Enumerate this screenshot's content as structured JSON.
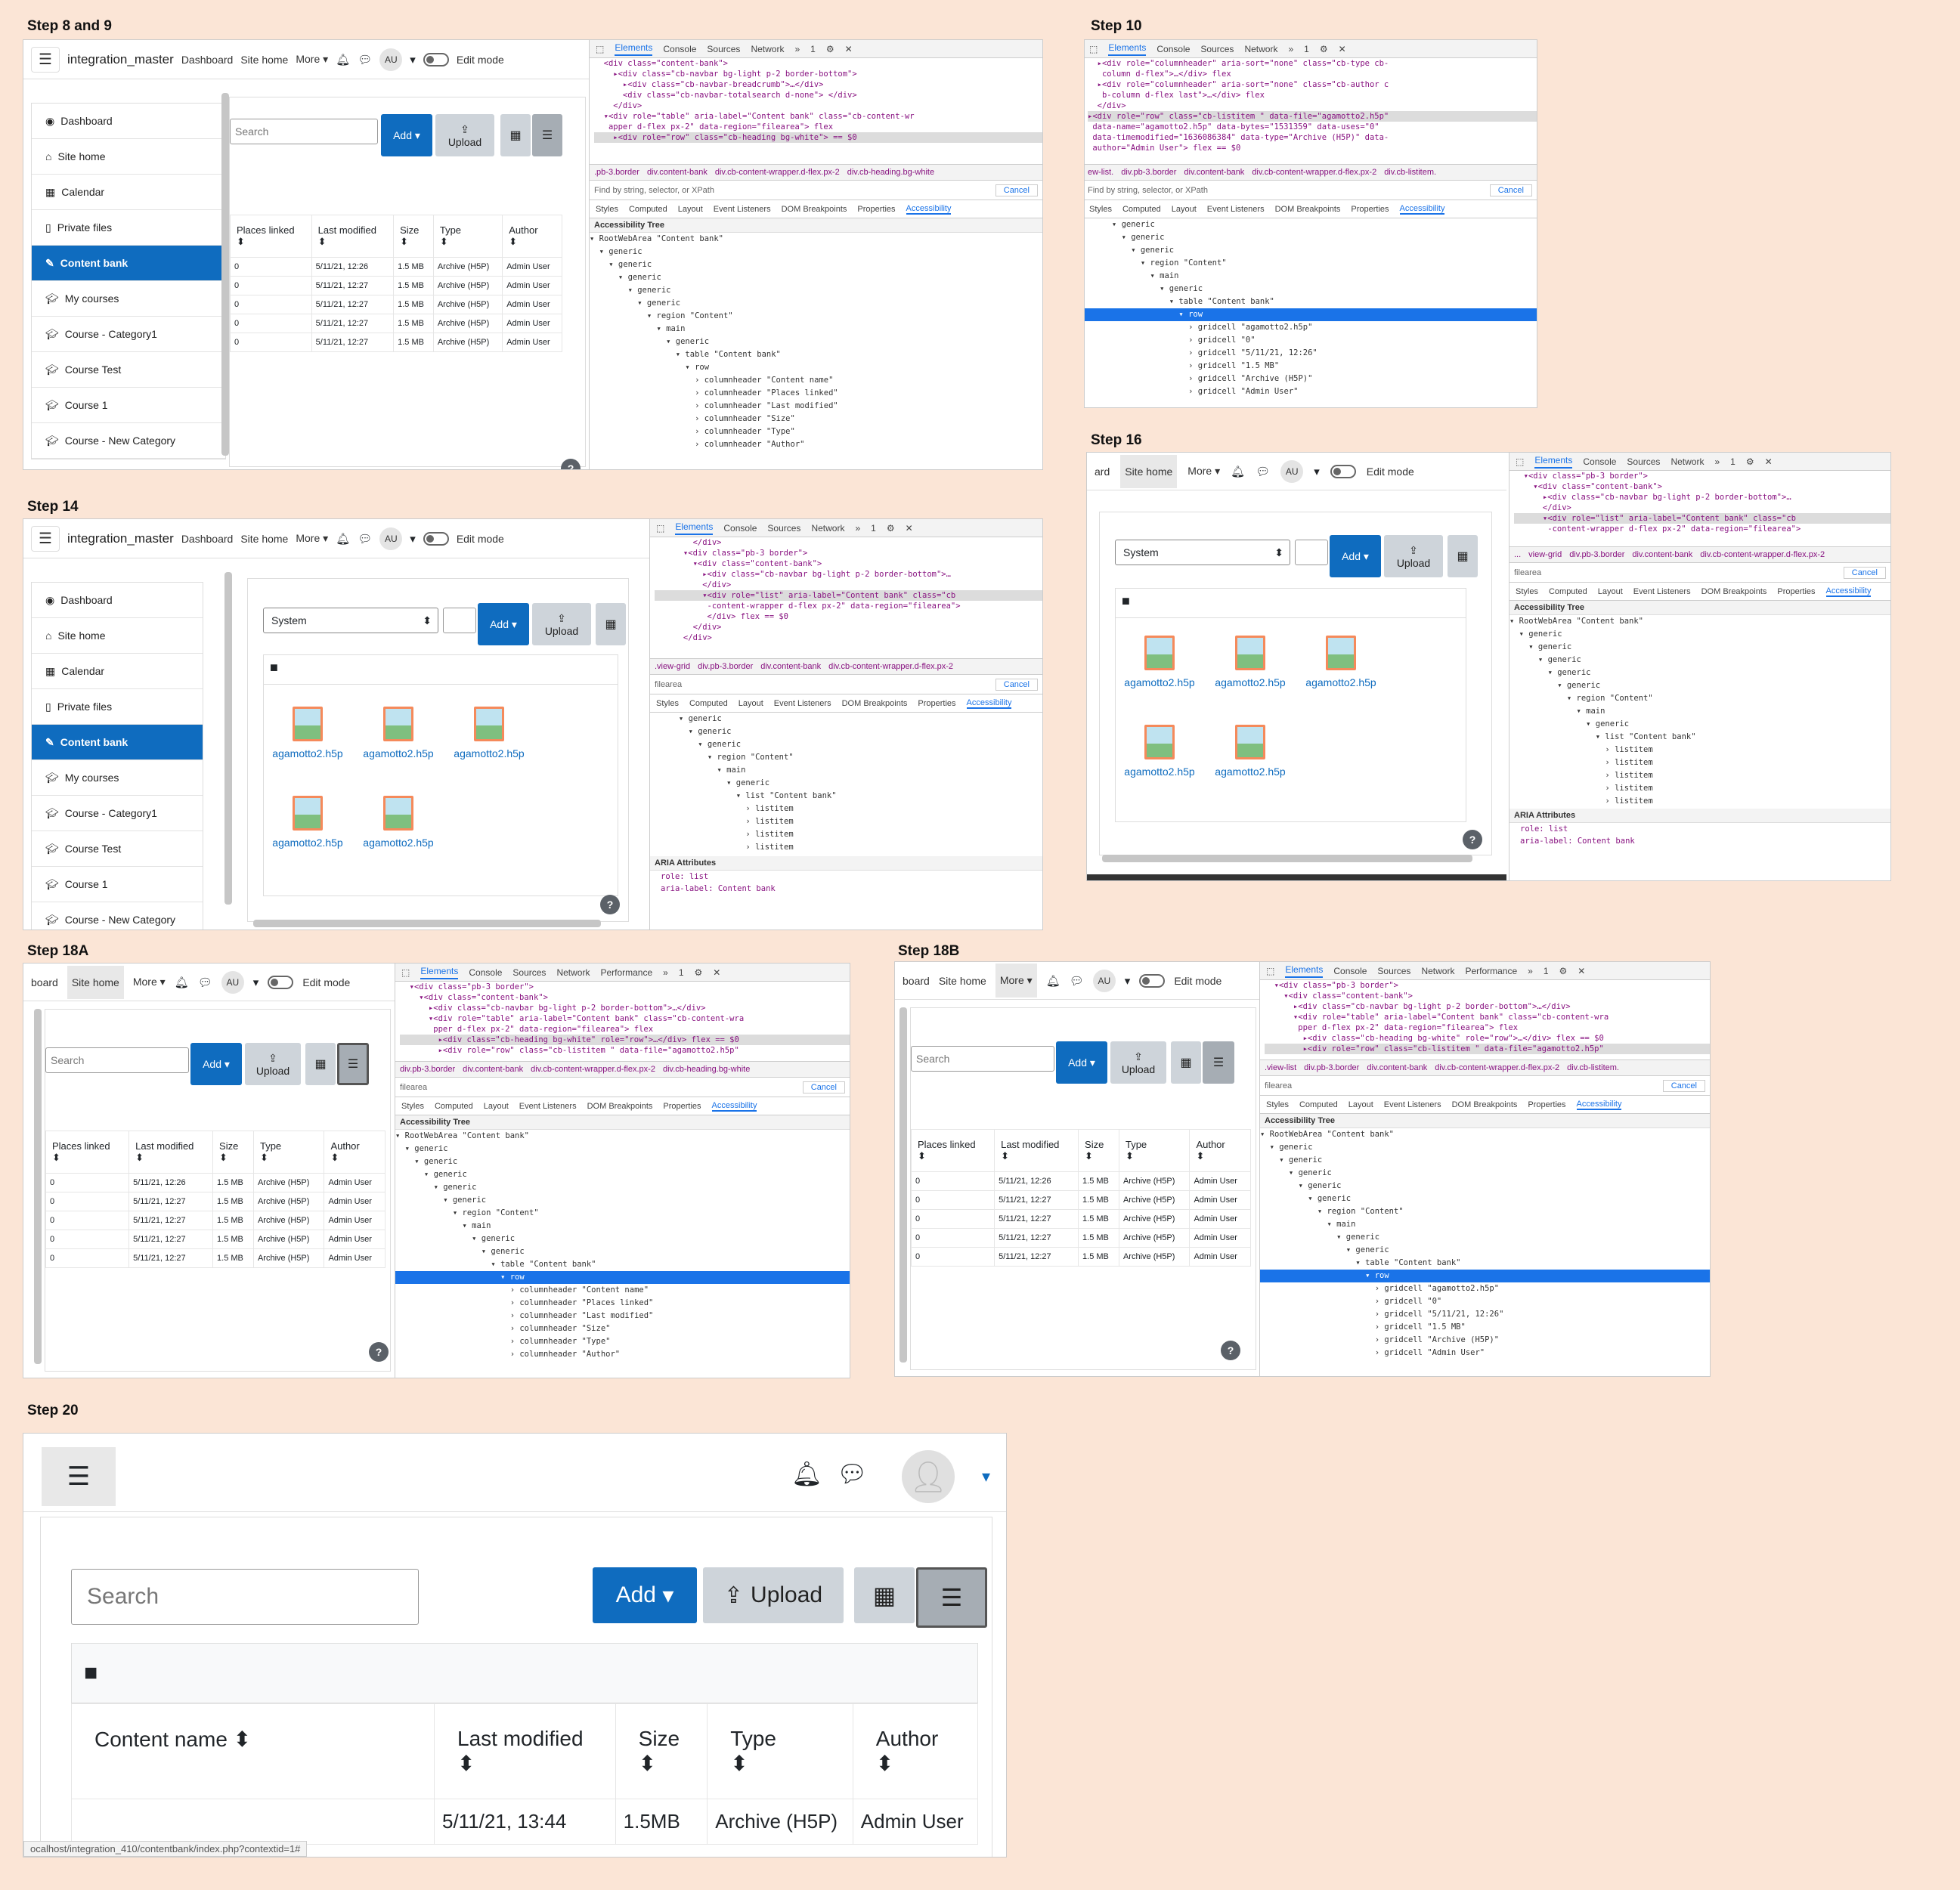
{
  "steps": {
    "s8": "Step 8 and 9",
    "s10": "Step 10",
    "s14": "Step 14",
    "s16": "Step 16",
    "s18a": "Step 18A",
    "s18b": "Step 18B",
    "s20": "Step 20"
  },
  "navbar": {
    "brand": "integration_master",
    "dashboard": "Dashboard",
    "site_home": "Site home",
    "more": "More",
    "avatar": "AU",
    "edit_mode": "Edit mode",
    "board_trunc": "board",
    "ard_trunc": "ard"
  },
  "sidebar": {
    "items": [
      "Dashboard",
      "Site home",
      "Calendar",
      "Private files",
      "Content bank",
      "My courses",
      "Course - Category1",
      "Course Test",
      "Course 1",
      "Course - New Category"
    ]
  },
  "bank": {
    "search_placeholder": "Search",
    "add": "Add",
    "upload": "Upload",
    "system": "System",
    "headers": [
      "Places linked",
      "Last modified",
      "Size",
      "Type",
      "Author"
    ],
    "rows": [
      [
        "0",
        "5/11/21, 12:26",
        "1.5 MB",
        "Archive (H5P)",
        "Admin User"
      ],
      [
        "0",
        "5/11/21, 12:27",
        "1.5 MB",
        "Archive (H5P)",
        "Admin User"
      ],
      [
        "0",
        "5/11/21, 12:27",
        "1.5 MB",
        "Archive (H5P)",
        "Admin User"
      ],
      [
        "0",
        "5/11/21, 12:27",
        "1.5 MB",
        "Archive (H5P)",
        "Admin User"
      ],
      [
        "0",
        "5/11/21, 12:27",
        "1.5 MB",
        "Archive (H5P)",
        "Admin User"
      ]
    ],
    "file_name": "agamotto2.h5p",
    "help": "?"
  },
  "devtools": {
    "tabs": [
      "Elements",
      "Console",
      "Sources",
      "Network"
    ],
    "tabs_perf": [
      "Elements",
      "Console",
      "Sources",
      "Network",
      "Performance"
    ],
    "issues": "1",
    "find_placeholder": "Find by string, selector, or XPath",
    "find_filearea": "filearea",
    "cancel": "Cancel",
    "subtabs": [
      "Styles",
      "Computed",
      "Layout",
      "Event Listeners",
      "DOM Breakpoints",
      "Properties",
      "Accessibility"
    ],
    "acc_tree": "Accessibility Tree",
    "aria_attrs": "ARIA Attributes",
    "aria_role": "role: list",
    "aria_label": "aria-label: Content bank",
    "code_s8": [
      "  <div class=\"content-bank\">",
      "    ▸<div class=\"cb-navbar bg-light p-2 border-bottom\">",
      "      ▸<div class=\"cb-navbar-breadcrumb\">…</div>",
      "      <div class=\"cb-navbar-totalsearch d-none\"> </div>",
      "    </div>",
      "  ▾<div role=\"table\" aria-label=\"Content bank\" class=\"cb-content-wr",
      "   apper d-flex px-2\" data-region=\"filearea\"> flex",
      "    ▸<div role=\"row\" class=\"cb-heading bg-white\"> == $0"
    ],
    "crumbs_s8": [
      ".pb-3.border",
      "div.content-bank",
      "div.cb-content-wrapper.d-flex.px-2",
      "div.cb-heading.bg-white"
    ],
    "tree_s8": [
      "▾ RootWebArea \"Content bank\"",
      "  ▾ generic",
      "    ▾ generic",
      "      ▾ generic",
      "        ▾ generic",
      "          ▾ generic",
      "            ▾ region \"Content\"",
      "              ▾ main",
      "                ▾ generic",
      "                  ▾ table \"Content bank\"",
      "                    ▾ row",
      "                      › columnheader \"Content name\"",
      "                      › columnheader \"Places linked\"",
      "                      › columnheader \"Last modified\"",
      "                      › columnheader \"Size\"",
      "                      › columnheader \"Type\"",
      "                      › columnheader \"Author\""
    ],
    "code_s10": [
      "  ▸<div role=\"columnheader\" aria-sort=\"none\" class=\"cb-type cb-",
      "   column d-flex\">…</div> flex",
      "  ▸<div role=\"columnheader\" aria-sort=\"none\" class=\"cb-author c",
      "   b-column d-flex last\">…</div> flex",
      "  </div>",
      "▸<div role=\"row\" class=\"cb-listitem \" data-file=\"agamotto2.h5p\"",
      " data-name=\"agamotto2.h5p\" data-bytes=\"1531359\" data-uses=\"0\"",
      " data-timemodified=\"1636086384\" data-type=\"Archive (H5P)\" data-",
      " author=\"Admin User\"> flex == $0"
    ],
    "crumbs_s10": [
      "ew-list.",
      "div.pb-3.border",
      "div.content-bank",
      "div.cb-content-wrapper.d-flex.px-2",
      "div.cb-listitem."
    ],
    "tree_s10": [
      "      ▾ generic",
      "        ▾ generic",
      "          ▾ generic",
      "            ▾ region \"Content\"",
      "              ▾ main",
      "                ▾ generic",
      "                  ▾ table \"Content bank\"",
      "                    ▾ row",
      "                      › gridcell \"agamotto2.h5p\"",
      "                      › gridcell \"0\"",
      "                      › gridcell \"5/11/21, 12:26\"",
      "                      › gridcell \"1.5 MB\"",
      "                      › gridcell \"Archive (H5P)\"",
      "                      › gridcell \"Admin User\""
    ],
    "code_s14": [
      "        </div>",
      "      ▾<div class=\"pb-3 border\">",
      "        ▾<div class=\"content-bank\">",
      "          ▸<div class=\"cb-navbar bg-light p-2 border-bottom\">…",
      "          </div>",
      "          ▾<div role=\"list\" aria-label=\"Content bank\" class=\"cb",
      "           -content-wrapper d-flex px-2\" data-region=\"filearea\">",
      "           </div> flex == $0",
      "        </div>",
      "      </div>"
    ],
    "crumbs_s14": [
      ".view-grid",
      "div.pb-3.border",
      "div.content-bank",
      "div.cb-content-wrapper.d-flex.px-2"
    ],
    "tree_s14": [
      "      ▾ generic",
      "        ▾ generic",
      "          ▾ generic",
      "            ▾ region \"Content\"",
      "              ▾ main",
      "                ▾ generic",
      "                  ▾ list \"Content bank\"",
      "                    › listitem",
      "                    › listitem",
      "                    › listitem",
      "                    › listitem",
      "                    › listitem"
    ],
    "code_s16": [
      "  ▾<div class=\"pb-3 border\">",
      "    ▾<div class=\"content-bank\">",
      "      ▸<div class=\"cb-navbar bg-light p-2 border-bottom\">…",
      "      </div>",
      "      ▾<div role=\"list\" aria-label=\"Content bank\" class=\"cb",
      "       -content-wrapper d-flex px-2\" data-region=\"filearea\">"
    ],
    "crumbs_s16": [
      "...",
      "view-grid",
      "div.pb-3.border",
      "div.content-bank",
      "div.cb-content-wrapper.d-flex.px-2"
    ],
    "tree_s16": [
      "▾ RootWebArea \"Content bank\"",
      "  ▾ generic",
      "    ▾ generic",
      "      ▾ generic",
      "        ▾ generic",
      "          ▾ generic",
      "            ▾ region \"Content\"",
      "              ▾ main",
      "                ▾ generic",
      "                  ▾ list \"Content bank\"",
      "                    › listitem",
      "                    › listitem",
      "                    › listitem",
      "                    › listitem",
      "                    › listitem"
    ],
    "code_s18": [
      "  ▾<div class=\"pb-3 border\">",
      "    ▾<div class=\"content-bank\">",
      "      ▸<div class=\"cb-navbar bg-light p-2 border-bottom\">…</div>",
      "      ▾<div role=\"table\" aria-label=\"Content bank\" class=\"cb-content-wra",
      "       pper d-flex px-2\" data-region=\"filearea\"> flex",
      "        ▸<div class=\"cb-heading bg-white\" role=\"row\">…</div> flex == $0",
      "        ▸<div role=\"row\" class=\"cb-listitem \" data-file=\"agamotto2.h5p\""
    ],
    "crumbs_s18a": [
      "div.pb-3.border",
      "div.content-bank",
      "div.cb-content-wrapper.d-flex.px-2",
      "div.cb-heading.bg-white"
    ],
    "crumbs_s18b": [
      ".view-list",
      "div.pb-3.border",
      "div.content-bank",
      "div.cb-content-wrapper.d-flex.px-2",
      "div.cb-listitem."
    ],
    "tree_s18a": [
      "▾ RootWebArea \"Content bank\"",
      "  ▾ generic",
      "    ▾ generic",
      "      ▾ generic",
      "        ▾ generic",
      "          ▾ generic",
      "            ▾ region \"Content\"",
      "              ▾ main",
      "                ▾ generic",
      "                  ▾ generic",
      "                    ▾ table \"Content bank\"",
      "                      ▾ row",
      "                        › columnheader \"Content name\"",
      "                        › columnheader \"Places linked\"",
      "                        › columnheader \"Last modified\"",
      "                        › columnheader \"Size\"",
      "                        › columnheader \"Type\"",
      "                        › columnheader \"Author\""
    ],
    "tree_s18b": [
      "▾ RootWebArea \"Content bank\"",
      "  ▾ generic",
      "    ▾ generic",
      "      ▾ generic",
      "        ▾ generic",
      "          ▾ generic",
      "            ▾ region \"Content\"",
      "              ▾ main",
      "                ▾ generic",
      "                  ▾ generic",
      "                    ▾ table \"Content bank\"",
      "                      ▾ row",
      "                        › gridcell \"agamotto2.h5p\"",
      "                        › gridcell \"0\"",
      "                        › gridcell \"5/11/21, 12:26\"",
      "                        › gridcell \"1.5 MB\"",
      "                        › gridcell \"Archive (H5P)\"",
      "                        › gridcell \"Admin User\""
    ]
  },
  "step20": {
    "search_placeholder": "Search",
    "add": "Add",
    "upload": "Upload",
    "headers": [
      "Content name",
      "Last modified",
      "Size",
      "Type",
      "Author"
    ],
    "row": [
      "",
      "5/11/21, 13:44",
      "1.5MB",
      "Archive (H5P)",
      "Admin User"
    ],
    "url": "ocalhost/integration_410/contentbank/index.php?contextid=1#"
  }
}
